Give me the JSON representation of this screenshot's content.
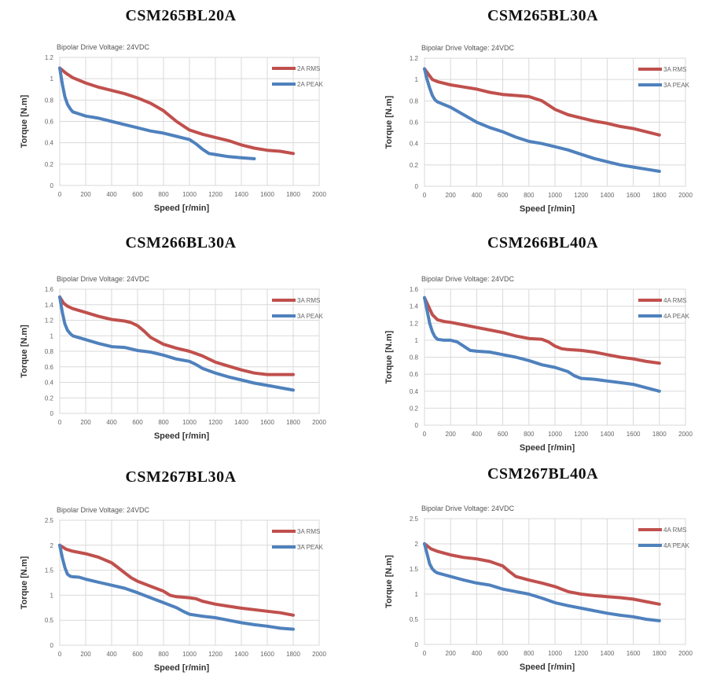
{
  "chart_data": [
    {
      "type": "line",
      "title": "CSM265BL20A",
      "subtitle": "Bipolar Drive  Voltage: 24VDC",
      "xlabel": "Speed [r/min]",
      "ylabel": "Torque [N.m]",
      "xlim": [
        0,
        2000
      ],
      "ylim": [
        0,
        1.2
      ],
      "xticks": [
        "0",
        "200",
        "400",
        "600",
        "800",
        "1000",
        "1200",
        "1400",
        "1600",
        "1800",
        "2000"
      ],
      "yticks": [
        "0",
        "0.2",
        "0.4",
        "0.6",
        "0.8",
        "1",
        "1.2"
      ],
      "series": [
        {
          "name": "2A RMS",
          "color": "#c0504d",
          "x": [
            0,
            50,
            100,
            200,
            300,
            400,
            500,
            600,
            700,
            800,
            900,
            1000,
            1100,
            1200,
            1300,
            1400,
            1500,
            1600,
            1700,
            1800
          ],
          "y": [
            1.1,
            1.05,
            1.01,
            0.96,
            0.92,
            0.89,
            0.86,
            0.82,
            0.77,
            0.7,
            0.6,
            0.52,
            0.48,
            0.45,
            0.42,
            0.38,
            0.35,
            0.33,
            0.32,
            0.3
          ]
        },
        {
          "name": "2A PEAK",
          "color": "#4f81bd",
          "x": [
            0,
            20,
            40,
            60,
            80,
            100,
            150,
            200,
            300,
            400,
            500,
            600,
            700,
            800,
            900,
            1000,
            1050,
            1100,
            1150,
            1200,
            1300,
            1400,
            1500
          ],
          "y": [
            1.1,
            0.95,
            0.83,
            0.76,
            0.72,
            0.69,
            0.67,
            0.65,
            0.63,
            0.6,
            0.57,
            0.54,
            0.51,
            0.49,
            0.46,
            0.43,
            0.39,
            0.34,
            0.3,
            0.29,
            0.27,
            0.26,
            0.25
          ]
        }
      ]
    },
    {
      "type": "line",
      "title": "CSM265BL30A",
      "subtitle": "Bipolar Drive  Voltage: 24VDC",
      "xlabel": "Speed [r/min]",
      "ylabel": "Torque [N.m]",
      "xlim": [
        0,
        2000
      ],
      "ylim": [
        0,
        1.2
      ],
      "xticks": [
        "0",
        "200",
        "400",
        "600",
        "800",
        "1000",
        "1200",
        "1400",
        "1600",
        "1800",
        "2000"
      ],
      "yticks": [
        "0",
        "0.2",
        "0.4",
        "0.6",
        "0.8",
        "1",
        "1.2"
      ],
      "series": [
        {
          "name": "3A RMS",
          "color": "#c0504d",
          "x": [
            0,
            30,
            60,
            100,
            200,
            300,
            400,
            500,
            600,
            700,
            800,
            900,
            1000,
            1100,
            1200,
            1300,
            1400,
            1500,
            1600,
            1700,
            1800
          ],
          "y": [
            1.1,
            1.05,
            1.0,
            0.98,
            0.95,
            0.93,
            0.91,
            0.88,
            0.86,
            0.85,
            0.84,
            0.8,
            0.72,
            0.67,
            0.64,
            0.61,
            0.59,
            0.56,
            0.54,
            0.51,
            0.48
          ]
        },
        {
          "name": "3A PEAK",
          "color": "#4f81bd",
          "x": [
            0,
            20,
            40,
            60,
            80,
            100,
            200,
            300,
            400,
            500,
            600,
            700,
            800,
            900,
            1000,
            1100,
            1200,
            1300,
            1400,
            1500,
            1600,
            1700,
            1800
          ],
          "y": [
            1.1,
            1.0,
            0.92,
            0.85,
            0.81,
            0.79,
            0.74,
            0.67,
            0.6,
            0.55,
            0.51,
            0.46,
            0.42,
            0.4,
            0.37,
            0.34,
            0.3,
            0.26,
            0.23,
            0.2,
            0.18,
            0.16,
            0.14
          ]
        }
      ]
    },
    {
      "type": "line",
      "title": "CSM266BL30A",
      "subtitle": "Bipolar Drive  Voltage: 24VDC",
      "xlabel": "Speed [r/min]",
      "ylabel": "Torque [N.m]",
      "xlim": [
        0,
        2000
      ],
      "ylim": [
        0,
        1.6
      ],
      "xticks": [
        "0",
        "200",
        "400",
        "600",
        "800",
        "1000",
        "1200",
        "1400",
        "1600",
        "1800",
        "2000"
      ],
      "yticks": [
        "0",
        "0.2",
        "0.4",
        "0.6",
        "0.8",
        "1",
        "1.2",
        "1.4",
        "1.6"
      ],
      "series": [
        {
          "name": "3A RMS",
          "color": "#c0504d",
          "x": [
            0,
            30,
            60,
            100,
            200,
            300,
            400,
            500,
            550,
            600,
            650,
            700,
            800,
            900,
            1000,
            1100,
            1200,
            1300,
            1400,
            1500,
            1600,
            1700,
            1800
          ],
          "y": [
            1.5,
            1.42,
            1.38,
            1.35,
            1.3,
            1.25,
            1.21,
            1.19,
            1.17,
            1.13,
            1.06,
            0.98,
            0.89,
            0.84,
            0.8,
            0.74,
            0.66,
            0.61,
            0.56,
            0.52,
            0.5,
            0.5,
            0.5
          ]
        },
        {
          "name": "3A PEAK",
          "color": "#4f81bd",
          "x": [
            0,
            20,
            40,
            60,
            80,
            100,
            200,
            300,
            400,
            500,
            600,
            700,
            800,
            900,
            1000,
            1050,
            1100,
            1200,
            1300,
            1400,
            1500,
            1600,
            1700,
            1800
          ],
          "y": [
            1.5,
            1.3,
            1.15,
            1.07,
            1.03,
            1.0,
            0.95,
            0.9,
            0.86,
            0.85,
            0.81,
            0.79,
            0.75,
            0.7,
            0.67,
            0.63,
            0.58,
            0.52,
            0.47,
            0.43,
            0.39,
            0.36,
            0.33,
            0.3
          ]
        }
      ]
    },
    {
      "type": "line",
      "title": "CSM266BL40A",
      "subtitle": "Bipolar Drive  Voltage: 24VDC",
      "xlabel": "Speed [r/min]",
      "ylabel": "Torque [N.m]",
      "xlim": [
        0,
        2000
      ],
      "ylim": [
        0,
        1.6
      ],
      "xticks": [
        "0",
        "200",
        "400",
        "600",
        "800",
        "1000",
        "1200",
        "1400",
        "1600",
        "1800",
        "2000"
      ],
      "yticks": [
        "0",
        "0.2",
        "0.4",
        "0.6",
        "0.8",
        "1",
        "1.2",
        "1.4",
        "1.6"
      ],
      "series": [
        {
          "name": "4A RMS",
          "color": "#c0504d",
          "x": [
            0,
            30,
            60,
            100,
            150,
            200,
            300,
            400,
            500,
            600,
            700,
            800,
            900,
            950,
            1000,
            1050,
            1100,
            1200,
            1300,
            1400,
            1500,
            1600,
            1700,
            1800
          ],
          "y": [
            1.5,
            1.4,
            1.3,
            1.24,
            1.22,
            1.21,
            1.18,
            1.15,
            1.12,
            1.09,
            1.05,
            1.02,
            1.01,
            0.98,
            0.93,
            0.9,
            0.89,
            0.88,
            0.86,
            0.83,
            0.8,
            0.78,
            0.75,
            0.73
          ]
        },
        {
          "name": "4A PEAK",
          "color": "#4f81bd",
          "x": [
            0,
            20,
            40,
            60,
            80,
            100,
            150,
            200,
            250,
            300,
            350,
            400,
            500,
            600,
            700,
            800,
            900,
            1000,
            1100,
            1150,
            1200,
            1300,
            1400,
            1500,
            1600,
            1700,
            1800
          ],
          "y": [
            1.5,
            1.35,
            1.2,
            1.1,
            1.04,
            1.01,
            1.0,
            1.0,
            0.98,
            0.93,
            0.88,
            0.87,
            0.86,
            0.83,
            0.8,
            0.76,
            0.71,
            0.68,
            0.63,
            0.58,
            0.55,
            0.54,
            0.52,
            0.5,
            0.48,
            0.44,
            0.4
          ]
        }
      ]
    },
    {
      "type": "line",
      "title": "CSM267BL30A",
      "subtitle": "Bipolar Drive  Voltage: 24VDC",
      "xlabel": "Speed [r/min]",
      "ylabel": "Torque [N.m]",
      "xlim": [
        0,
        2000
      ],
      "ylim": [
        0,
        2.5
      ],
      "xticks": [
        "0",
        "200",
        "400",
        "600",
        "800",
        "1000",
        "1200",
        "1400",
        "1600",
        "1800",
        "2000"
      ],
      "yticks": [
        "0",
        "0.5",
        "1",
        "1.5",
        "2",
        "2.5"
      ],
      "series": [
        {
          "name": "3A RMS",
          "color": "#c0504d",
          "x": [
            0,
            50,
            100,
            200,
            300,
            400,
            450,
            500,
            550,
            600,
            700,
            800,
            850,
            900,
            1000,
            1050,
            1100,
            1200,
            1300,
            1400,
            1500,
            1600,
            1700,
            1800
          ],
          "y": [
            2.0,
            1.92,
            1.88,
            1.83,
            1.76,
            1.65,
            1.55,
            1.45,
            1.35,
            1.28,
            1.18,
            1.08,
            1.0,
            0.97,
            0.95,
            0.93,
            0.88,
            0.82,
            0.78,
            0.74,
            0.71,
            0.68,
            0.65,
            0.6
          ]
        },
        {
          "name": "3A PEAK",
          "color": "#4f81bd",
          "x": [
            0,
            20,
            40,
            60,
            80,
            100,
            150,
            200,
            300,
            400,
            500,
            600,
            700,
            800,
            900,
            950,
            1000,
            1100,
            1200,
            1300,
            1400,
            1500,
            1600,
            1700,
            1800
          ],
          "y": [
            2.0,
            1.75,
            1.55,
            1.42,
            1.38,
            1.37,
            1.36,
            1.32,
            1.26,
            1.2,
            1.14,
            1.05,
            0.95,
            0.85,
            0.75,
            0.68,
            0.62,
            0.58,
            0.55,
            0.5,
            0.45,
            0.41,
            0.38,
            0.34,
            0.32
          ]
        }
      ]
    },
    {
      "type": "line",
      "title": "CSM267BL40A",
      "subtitle": "Bipolar Drive  Voltage: 24VDC",
      "xlabel": "Speed [r/min]",
      "ylabel": "Torque [N.m]",
      "xlim": [
        0,
        2000
      ],
      "ylim": [
        0,
        2.5
      ],
      "xticks": [
        "0",
        "200",
        "400",
        "600",
        "800",
        "1000",
        "1200",
        "1400",
        "1600",
        "1800",
        "2000"
      ],
      "yticks": [
        "0",
        "0.5",
        "1",
        "1.5",
        "2",
        "2.5"
      ],
      "series": [
        {
          "name": "4A RMS",
          "color": "#c0504d",
          "x": [
            0,
            50,
            100,
            200,
            300,
            400,
            500,
            600,
            650,
            700,
            800,
            900,
            1000,
            1050,
            1100,
            1200,
            1300,
            1400,
            1500,
            1600,
            1700,
            1800
          ],
          "y": [
            2.0,
            1.9,
            1.85,
            1.78,
            1.73,
            1.7,
            1.65,
            1.56,
            1.45,
            1.35,
            1.28,
            1.22,
            1.15,
            1.1,
            1.05,
            1.0,
            0.97,
            0.95,
            0.93,
            0.9,
            0.85,
            0.8
          ]
        },
        {
          "name": "4A PEAK",
          "color": "#4f81bd",
          "x": [
            0,
            20,
            40,
            60,
            80,
            100,
            200,
            300,
            400,
            500,
            600,
            700,
            800,
            900,
            1000,
            1100,
            1200,
            1300,
            1400,
            1500,
            1600,
            1700,
            1800
          ],
          "y": [
            2.0,
            1.8,
            1.6,
            1.5,
            1.45,
            1.42,
            1.35,
            1.28,
            1.22,
            1.18,
            1.1,
            1.05,
            1.0,
            0.92,
            0.83,
            0.77,
            0.72,
            0.67,
            0.62,
            0.58,
            0.55,
            0.5,
            0.47
          ]
        }
      ]
    }
  ]
}
